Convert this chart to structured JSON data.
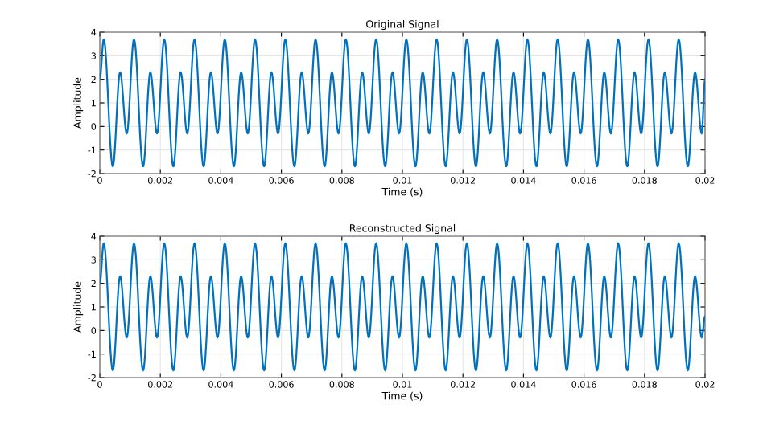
{
  "chart_data": [
    {
      "type": "line",
      "title": "Original Signal",
      "xlabel": "Time (s)",
      "ylabel": "Amplitude",
      "grid": true,
      "xlim": [
        0,
        0.02
      ],
      "ylim": [
        -2,
        4
      ],
      "xticks": [
        0,
        0.002,
        0.004,
        0.006,
        0.008,
        0.01,
        0.012,
        0.014,
        0.016,
        0.018,
        0.02
      ],
      "yticks": [
        -2,
        -1,
        0,
        1,
        2,
        3,
        4
      ],
      "x": [
        0,
        0.00013,
        0.00043,
        0.00067,
        0.00089,
        0.00113,
        0.00143,
        0.00167,
        0.00189,
        0.00213,
        0.00243,
        0.00267,
        0.00289,
        0.00313,
        0.00343,
        0.00367,
        0.00389,
        0.00413,
        0.00443,
        0.00467,
        0.00489,
        0.00513,
        0.00543,
        0.00567,
        0.00589,
        0.00613,
        0.00643,
        0.00667,
        0.00689,
        0.00713,
        0.00743,
        0.00767,
        0.00789,
        0.00813,
        0.00843,
        0.00867,
        0.00889,
        0.00913,
        0.00943,
        0.00967,
        0.00989,
        0.01013,
        0.01043,
        0.01067,
        0.01089,
        0.01113,
        0.01143,
        0.01167,
        0.01189,
        0.01213,
        0.01243,
        0.01267,
        0.01289,
        0.01313,
        0.01343,
        0.01367,
        0.01389,
        0.01413,
        0.01443,
        0.01467,
        0.01489,
        0.01513,
        0.01543,
        0.01567,
        0.01589,
        0.01613,
        0.01643,
        0.01667,
        0.01689,
        0.01713,
        0.01743,
        0.01767,
        0.01789,
        0.01813,
        0.01843,
        0.01867,
        0.01889,
        0.01913,
        0.01943,
        0.01967,
        0.01989,
        0.02
      ],
      "series": [
        {
          "color": "#0072bd",
          "values": [
            2.0,
            3.7,
            -1.7,
            2.3,
            -0.3,
            3.7,
            -1.7,
            2.3,
            -0.3,
            3.7,
            -1.7,
            2.3,
            -0.3,
            3.7,
            -1.7,
            2.3,
            -0.3,
            3.7,
            -1.7,
            2.3,
            -0.3,
            3.7,
            -1.7,
            2.3,
            -0.3,
            3.7,
            -1.7,
            2.3,
            -0.3,
            3.7,
            -1.7,
            2.3,
            -0.3,
            3.7,
            -1.7,
            2.3,
            -0.3,
            3.7,
            -1.7,
            2.3,
            -0.3,
            3.7,
            -1.7,
            2.3,
            -0.3,
            3.7,
            -1.7,
            2.3,
            -0.3,
            3.7,
            -1.7,
            2.3,
            -0.3,
            3.7,
            -1.7,
            2.3,
            -0.3,
            3.7,
            -1.7,
            2.3,
            -0.3,
            3.7,
            -1.7,
            2.3,
            -0.3,
            3.7,
            -1.7,
            2.3,
            -0.3,
            3.7,
            -1.7,
            2.3,
            -0.3,
            3.7,
            -1.7,
            2.3,
            -0.3,
            3.7,
            -1.7,
            2.3,
            -0.3,
            2.0
          ]
        }
      ]
    },
    {
      "type": "line",
      "title": "Reconstructed Signal",
      "xlabel": "Time (s)",
      "ylabel": "Amplitude",
      "grid": true,
      "xlim": [
        0,
        0.02
      ],
      "ylim": [
        -2,
        4
      ],
      "xticks": [
        0,
        0.002,
        0.004,
        0.006,
        0.008,
        0.01,
        0.012,
        0.014,
        0.016,
        0.018,
        0.02
      ],
      "yticks": [
        -2,
        -1,
        0,
        1,
        2,
        3,
        4
      ],
      "x": [
        0,
        0.00013,
        0.00043,
        0.00067,
        0.00089,
        0.00113,
        0.00143,
        0.00167,
        0.00189,
        0.00213,
        0.00243,
        0.00267,
        0.00289,
        0.00313,
        0.00343,
        0.00367,
        0.00389,
        0.00413,
        0.00443,
        0.00467,
        0.00489,
        0.00513,
        0.00543,
        0.00567,
        0.00589,
        0.00613,
        0.00643,
        0.00667,
        0.00689,
        0.00713,
        0.00743,
        0.00767,
        0.00789,
        0.00813,
        0.00843,
        0.00867,
        0.00889,
        0.00913,
        0.00943,
        0.00967,
        0.00989,
        0.01013,
        0.01043,
        0.01067,
        0.01089,
        0.01113,
        0.01143,
        0.01167,
        0.01189,
        0.01213,
        0.01243,
        0.01267,
        0.01289,
        0.01313,
        0.01343,
        0.01367,
        0.01389,
        0.01413,
        0.01443,
        0.01467,
        0.01489,
        0.01513,
        0.01543,
        0.01567,
        0.01589,
        0.01613,
        0.01643,
        0.01667,
        0.01689,
        0.01713,
        0.01743,
        0.01767,
        0.01789,
        0.01813,
        0.01843,
        0.01867,
        0.01889,
        0.01913,
        0.01943,
        0.01967,
        0.01989,
        0.02
      ],
      "series": [
        {
          "color": "#0072bd",
          "values": [
            2.0,
            3.7,
            -1.7,
            2.3,
            -0.3,
            3.7,
            -1.7,
            2.3,
            -0.3,
            3.7,
            -1.7,
            2.3,
            -0.3,
            3.7,
            -1.7,
            2.3,
            -0.3,
            3.7,
            -1.7,
            2.3,
            -0.3,
            3.7,
            -1.7,
            2.3,
            -0.3,
            3.7,
            -1.7,
            2.3,
            -0.3,
            3.7,
            -1.7,
            2.3,
            -0.3,
            3.7,
            -1.7,
            2.3,
            -0.3,
            3.7,
            -1.7,
            2.3,
            -0.3,
            3.7,
            -1.7,
            2.3,
            -0.3,
            3.7,
            -1.7,
            2.3,
            -0.3,
            3.7,
            -1.7,
            2.3,
            -0.3,
            3.7,
            -1.7,
            2.3,
            -0.3,
            3.7,
            -1.7,
            2.3,
            -0.3,
            3.7,
            -1.7,
            2.3,
            -0.3,
            3.7,
            -1.7,
            2.3,
            -0.3,
            3.7,
            -1.7,
            2.3,
            -0.3,
            3.7,
            -1.7,
            2.3,
            -0.3,
            3.7,
            -1.7,
            2.3,
            -0.3,
            0.6
          ]
        }
      ]
    }
  ]
}
